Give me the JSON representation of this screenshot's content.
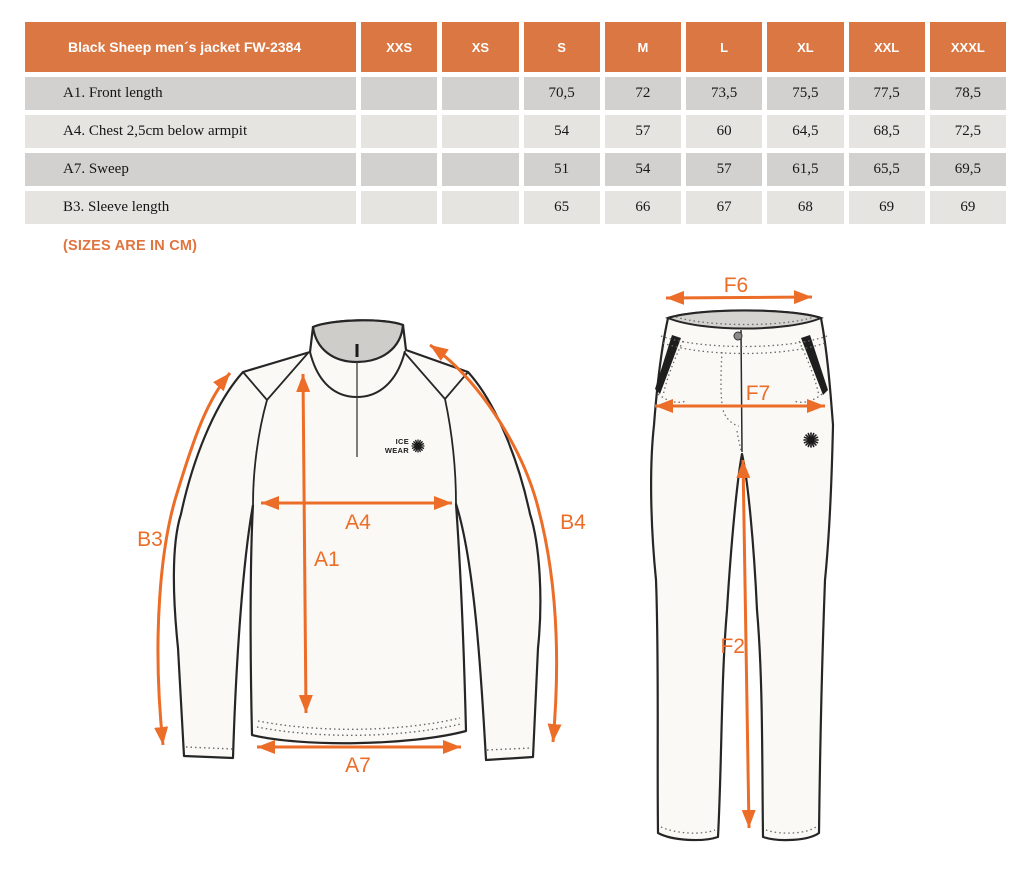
{
  "table": {
    "title": "Black Sheep men´s jacket FW-2384",
    "columns": [
      "XXS",
      "XS",
      "S",
      "M",
      "L",
      "XL",
      "XXL",
      "XXXL"
    ],
    "rows": [
      {
        "label": "A1. Front length",
        "values": [
          "",
          "",
          "70,5",
          "72",
          "73,5",
          "75,5",
          "77,5",
          "78,5"
        ]
      },
      {
        "label": "A4. Chest 2,5cm below armpit",
        "values": [
          "",
          "",
          "54",
          "57",
          "60",
          "64,5",
          "68,5",
          "72,5"
        ]
      },
      {
        "label": "A7. Sweep",
        "values": [
          "",
          "",
          "51",
          "54",
          "57",
          "61,5",
          "65,5",
          "69,5"
        ]
      },
      {
        "label": "B3. Sleeve length",
        "values": [
          "",
          "",
          "65",
          "66",
          "67",
          "68",
          "69",
          "69"
        ]
      }
    ]
  },
  "note": "(SIZES ARE IN CM)",
  "jacket": {
    "labels": {
      "a1": "A1",
      "a4": "A4",
      "a7": "A7",
      "b3": "B3",
      "b4": "B4"
    },
    "logo": {
      "line1": "ICE",
      "line2": "WEAR"
    }
  },
  "pants": {
    "labels": {
      "f6": "F6",
      "f7": "F7",
      "f2": "F2"
    }
  },
  "colors": {
    "header_orange": "#DB7742",
    "accent_orange": "#EC6D28",
    "note_orange": "#E0743F",
    "row_dark": "#D2D1CF",
    "row_light": "#E5E4E1"
  }
}
